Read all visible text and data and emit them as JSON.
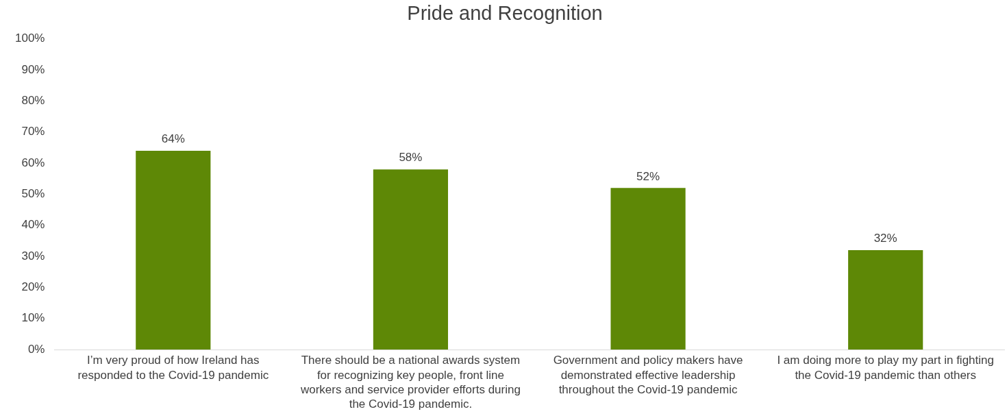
{
  "chart_data": {
    "type": "bar",
    "title": "Pride and Recognition",
    "categories": [
      "I’m very proud of how Ireland has responded to the Covid-19 pandemic",
      "There should be a national awards system for recognizing key people, front line workers and service provider efforts during the Covid-19 pandemic.",
      "Government and policy makers have demonstrated effective leadership throughout the Covid-19 pandemic",
      "I am doing more to play my part in fighting the Covid-19 pandemic than others"
    ],
    "values": [
      64,
      58,
      52,
      32
    ],
    "value_labels": [
      "64%",
      "58%",
      "52%",
      "32%"
    ],
    "color": "#5e8806",
    "ylim": [
      0,
      100
    ],
    "yticks": [
      {
        "value": 0,
        "label": "0%"
      },
      {
        "value": 10,
        "label": "10%"
      },
      {
        "value": 20,
        "label": "20%"
      },
      {
        "value": 30,
        "label": "30%"
      },
      {
        "value": 40,
        "label": "40%"
      },
      {
        "value": 50,
        "label": "50%"
      },
      {
        "value": 60,
        "label": "60%"
      },
      {
        "value": 70,
        "label": "70%"
      },
      {
        "value": 80,
        "label": "80%"
      },
      {
        "value": 90,
        "label": "90%"
      },
      {
        "value": 100,
        "label": "100%"
      }
    ],
    "grid": false,
    "legend": false
  }
}
